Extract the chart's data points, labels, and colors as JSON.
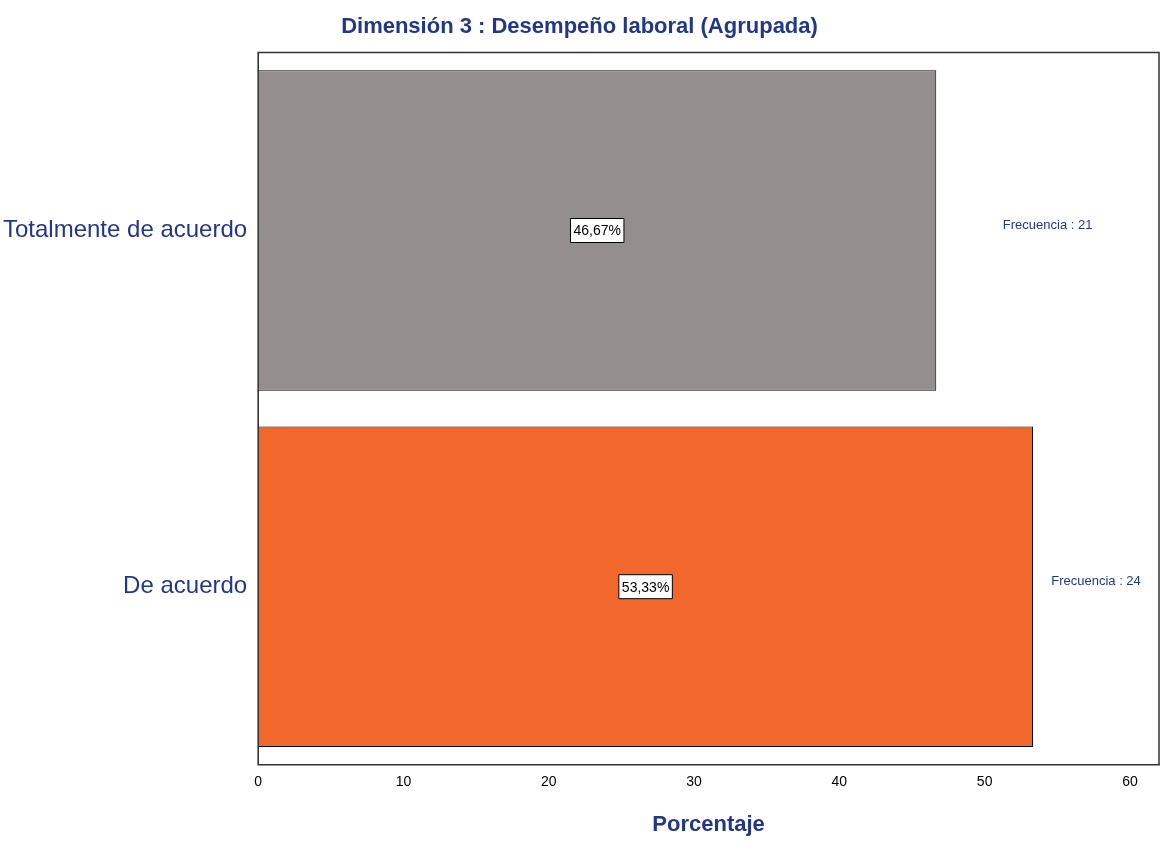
{
  "chart_data": {
    "type": "bar",
    "orientation": "horizontal",
    "title": "Dimensión 3 : Desempeño laboral (Agrupada)",
    "xlabel": "Porcentaje",
    "categories": [
      "Totalmente de acuerdo",
      "De acuerdo"
    ],
    "values": [
      46.67,
      53.33
    ],
    "colors": [
      "#948f8e",
      "#f2682c"
    ],
    "value_labels": [
      "46,67%",
      "53,33%"
    ],
    "xlim": [
      0,
      62
    ],
    "xticks": [
      0,
      10,
      20,
      30,
      40,
      50,
      60
    ],
    "grid": false,
    "legend": false,
    "annotations": [
      "Frecuencia : 21",
      "Frecuencia : 24"
    ]
  }
}
